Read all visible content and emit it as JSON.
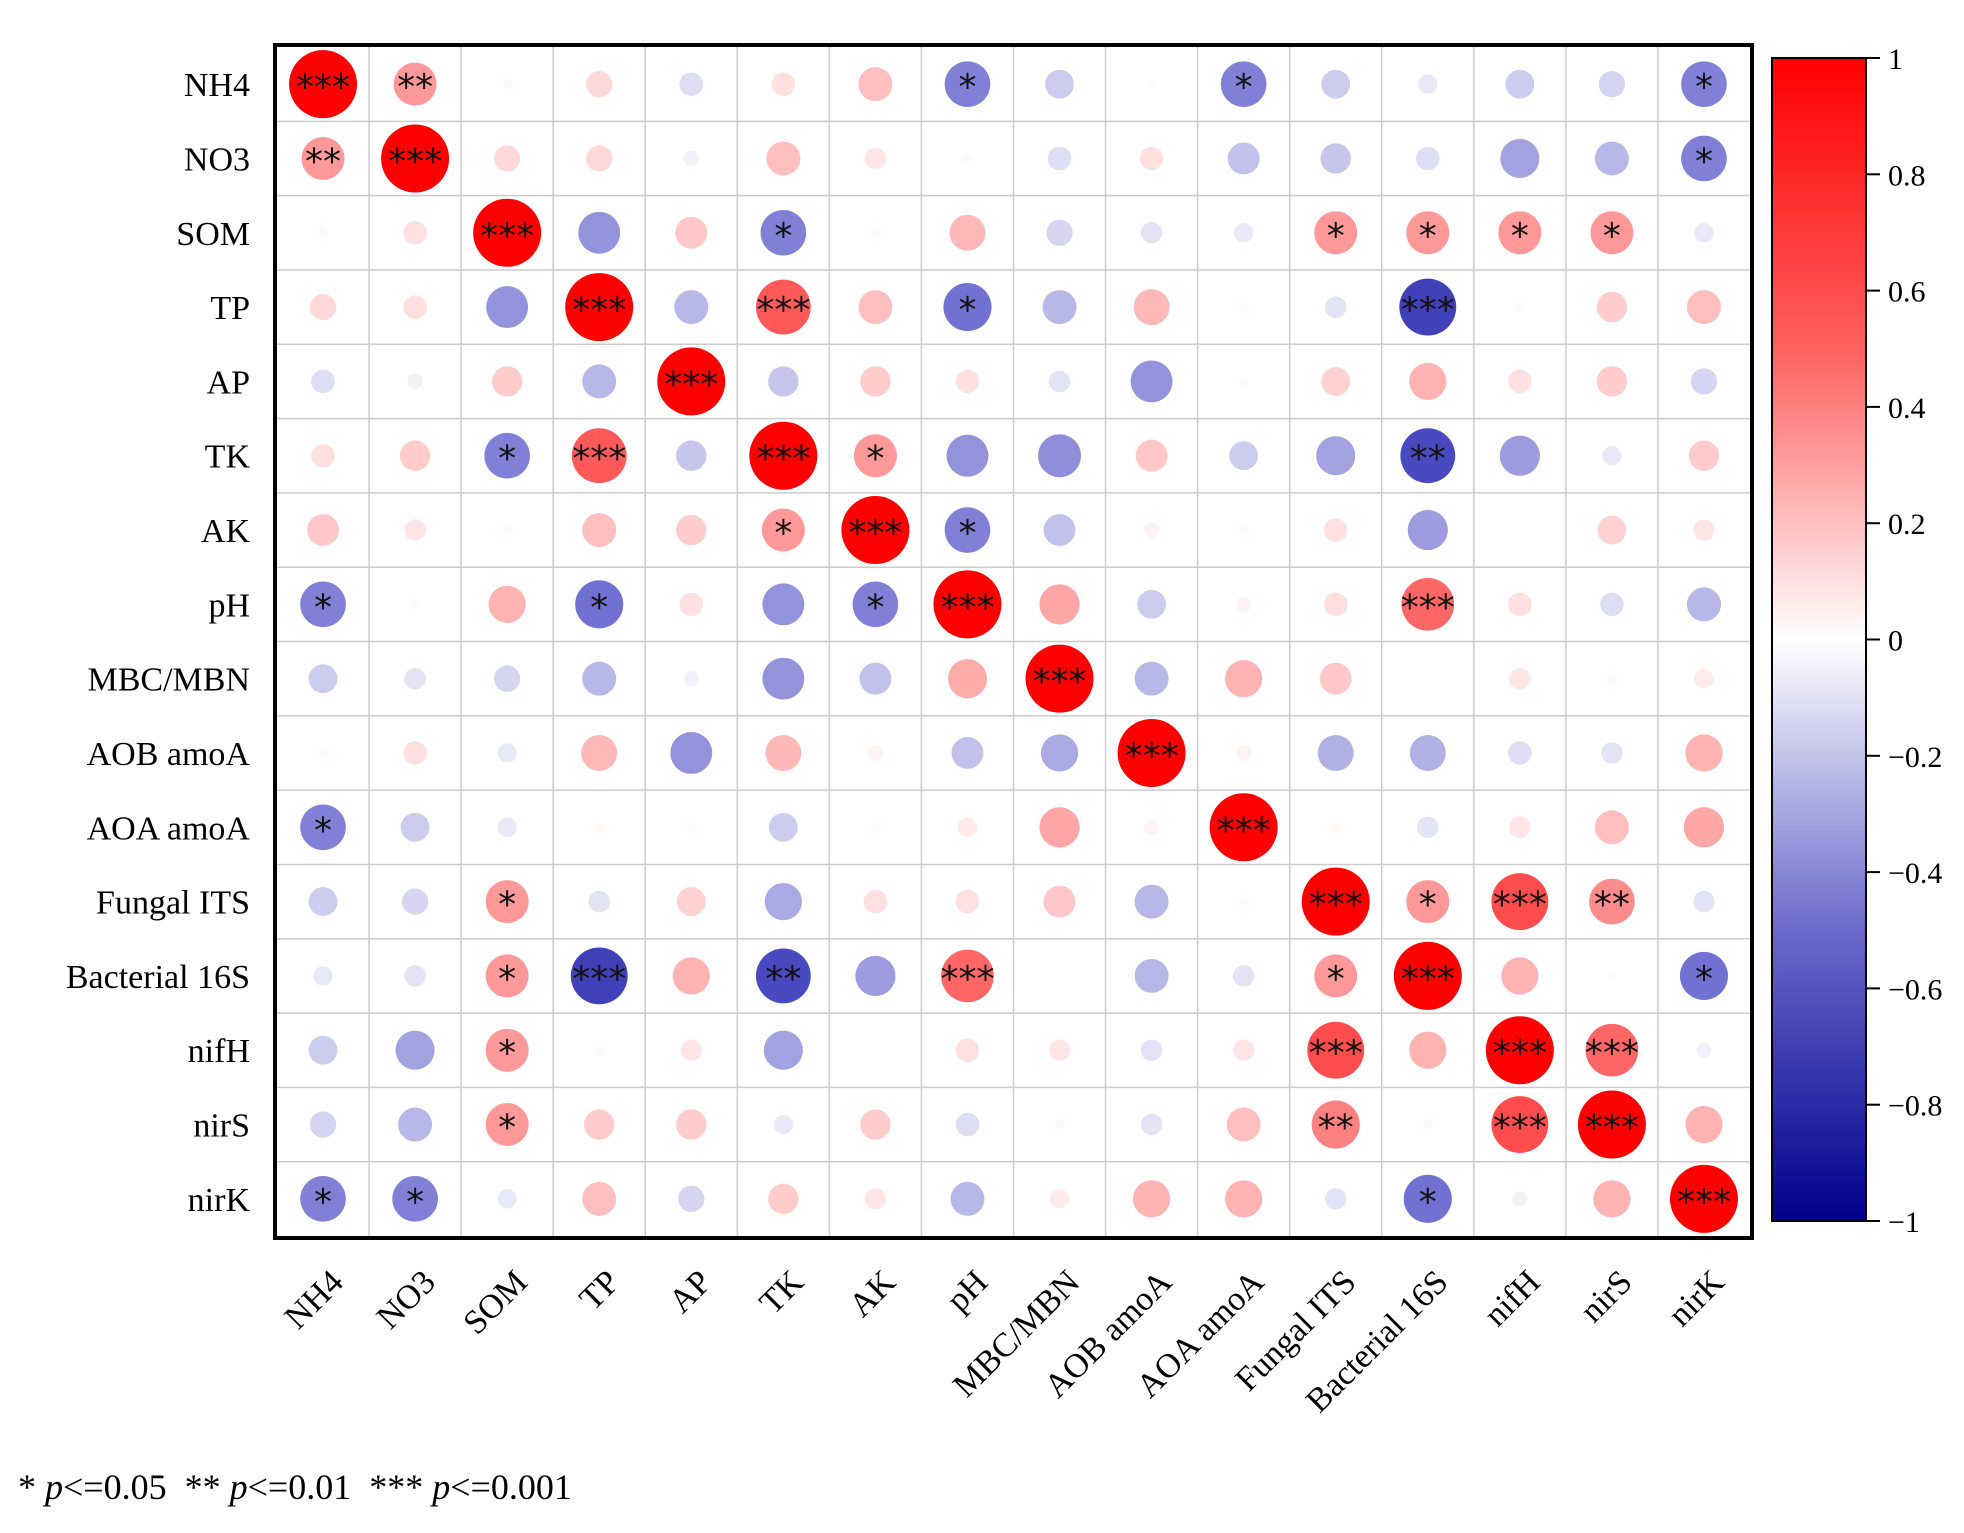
{
  "chart_data": {
    "type": "heatmap",
    "subtype": "correlation-circle-matrix",
    "title": "",
    "variables": [
      "NH4",
      "NO3",
      "SOM",
      "TP",
      "AP",
      "TK",
      "AK",
      "pH",
      "MBC/MBN",
      "AOB amoA",
      "AOA amoA",
      "Fungal ITS",
      "Bacterial 16S",
      "nifH",
      "nirS",
      "nirK"
    ],
    "matrix": [
      [
        1.0,
        0.4,
        0.02,
        0.15,
        -0.12,
        0.12,
        0.25,
        -0.45,
        -0.18,
        0.02,
        -0.45,
        -0.18,
        -0.08,
        -0.18,
        -0.15,
        -0.45
      ],
      [
        0.4,
        1.0,
        0.15,
        0.15,
        -0.05,
        0.25,
        0.1,
        0.02,
        -0.12,
        0.12,
        -0.22,
        -0.2,
        -0.12,
        -0.33,
        -0.25,
        -0.45
      ],
      [
        0.02,
        0.12,
        1.0,
        -0.38,
        0.22,
        -0.45,
        0.02,
        0.28,
        -0.15,
        -0.1,
        -0.08,
        0.4,
        0.4,
        0.4,
        0.4,
        -0.08
      ],
      [
        0.15,
        0.12,
        -0.38,
        1.0,
        -0.25,
        0.65,
        0.25,
        -0.5,
        -0.25,
        0.28,
        0.02,
        -0.1,
        -0.7,
        0.02,
        0.2,
        0.25
      ],
      [
        -0.12,
        -0.05,
        0.2,
        -0.25,
        1.0,
        -0.2,
        0.2,
        0.12,
        -0.1,
        -0.38,
        0.02,
        0.18,
        0.3,
        0.12,
        0.2,
        -0.15
      ],
      [
        0.12,
        0.2,
        -0.45,
        0.65,
        -0.2,
        1.0,
        0.4,
        -0.38,
        -0.4,
        0.22,
        -0.18,
        -0.33,
        -0.65,
        -0.35,
        -0.08,
        0.2
      ],
      [
        0.22,
        0.1,
        0.02,
        0.25,
        0.2,
        0.4,
        1.0,
        -0.45,
        -0.22,
        0.05,
        0.02,
        0.12,
        -0.35,
        0.0,
        0.18,
        0.1
      ],
      [
        -0.45,
        0.02,
        0.3,
        -0.5,
        0.12,
        -0.38,
        -0.45,
        1.0,
        0.35,
        -0.18,
        0.05,
        0.12,
        0.6,
        0.12,
        -0.12,
        -0.25
      ],
      [
        -0.18,
        -0.1,
        -0.15,
        -0.25,
        -0.05,
        -0.38,
        -0.22,
        0.33,
        1.0,
        -0.25,
        0.3,
        0.22,
        0.0,
        0.1,
        0.02,
        0.08
      ],
      [
        0.02,
        0.12,
        -0.08,
        0.28,
        -0.38,
        0.28,
        0.05,
        -0.22,
        -0.3,
        1.0,
        0.05,
        -0.28,
        -0.28,
        -0.12,
        -0.1,
        0.3
      ],
      [
        -0.45,
        -0.18,
        -0.08,
        0.02,
        0.02,
        -0.18,
        0.02,
        0.08,
        0.35,
        0.05,
        1.0,
        0.02,
        -0.1,
        0.1,
        0.25,
        0.35
      ],
      [
        -0.18,
        -0.15,
        0.4,
        -0.1,
        0.18,
        -0.3,
        0.12,
        0.12,
        0.22,
        -0.25,
        0.02,
        1.0,
        0.4,
        0.7,
        0.45,
        -0.1
      ],
      [
        -0.08,
        -0.1,
        0.4,
        -0.7,
        0.3,
        -0.65,
        -0.35,
        0.6,
        0.0,
        -0.25,
        -0.1,
        0.4,
        1.0,
        0.3,
        0.02,
        -0.5
      ],
      [
        -0.18,
        -0.33,
        0.4,
        0.02,
        0.1,
        -0.33,
        0.0,
        0.12,
        0.1,
        -0.1,
        0.1,
        0.7,
        0.3,
        1.0,
        0.6,
        -0.05
      ],
      [
        -0.15,
        -0.25,
        0.4,
        0.2,
        0.2,
        -0.08,
        0.2,
        -0.12,
        0.02,
        -0.1,
        0.25,
        0.5,
        0.02,
        0.7,
        1.0,
        0.3
      ],
      [
        -0.45,
        -0.45,
        -0.08,
        0.25,
        -0.15,
        0.2,
        0.1,
        -0.25,
        0.08,
        0.3,
        0.3,
        -0.1,
        -0.5,
        -0.05,
        0.3,
        1.0
      ]
    ],
    "significance": [
      [
        "***",
        "**",
        "",
        "",
        "",
        "",
        "",
        "*",
        "",
        "",
        "*",
        "",
        "",
        "",
        "",
        "*"
      ],
      [
        "**",
        "***",
        "",
        "",
        "",
        "",
        "",
        "",
        "",
        "",
        "",
        "",
        "",
        "",
        "",
        "*"
      ],
      [
        "",
        "",
        "***",
        "",
        "",
        "*",
        "",
        "",
        "",
        "",
        "",
        "*",
        "*",
        "*",
        "*",
        ""
      ],
      [
        "",
        "",
        "",
        "***",
        "",
        "***",
        "",
        "*",
        "",
        "",
        "",
        "",
        "***",
        "",
        "",
        ""
      ],
      [
        "",
        "",
        "",
        "",
        "***",
        "",
        "",
        "",
        "",
        "",
        "",
        "",
        "",
        "",
        "",
        ""
      ],
      [
        "",
        "",
        "*",
        "***",
        "",
        "***",
        "*",
        "",
        "",
        "",
        "",
        "",
        "**",
        "",
        "",
        ""
      ],
      [
        "",
        "",
        "",
        "",
        "",
        "*",
        "***",
        "*",
        "",
        "",
        "",
        "",
        "",
        "",
        "",
        ""
      ],
      [
        "*",
        "",
        "",
        "*",
        "",
        "",
        "*",
        "***",
        "",
        "",
        "",
        "",
        "***",
        "",
        "",
        ""
      ],
      [
        "",
        "",
        "",
        "",
        "",
        "",
        "",
        "",
        "***",
        "",
        "",
        "",
        "",
        "",
        "",
        ""
      ],
      [
        "",
        "",
        "",
        "",
        "",
        "",
        "",
        "",
        "",
        "***",
        "",
        "",
        "",
        "",
        "",
        ""
      ],
      [
        "*",
        "",
        "",
        "",
        "",
        "",
        "",
        "",
        "",
        "",
        "***",
        "",
        "",
        "",
        "",
        ""
      ],
      [
        "",
        "",
        "*",
        "",
        "",
        "",
        "",
        "",
        "",
        "",
        "",
        "***",
        "*",
        "***",
        "**",
        ""
      ],
      [
        "",
        "",
        "*",
        "***",
        "",
        "**",
        "",
        "***",
        "",
        "",
        "",
        "*",
        "***",
        "",
        "",
        "*"
      ],
      [
        "",
        "",
        "*",
        "",
        "",
        "",
        "",
        "",
        "",
        "",
        "",
        "***",
        "",
        "***",
        "***",
        ""
      ],
      [
        "",
        "",
        "*",
        "",
        "",
        "",
        "",
        "",
        "",
        "",
        "",
        "**",
        "",
        "***",
        "***",
        ""
      ],
      [
        "*",
        "*",
        "",
        "",
        "",
        "",
        "",
        "",
        "",
        "",
        "",
        "",
        "*",
        "",
        "",
        "***"
      ]
    ],
    "colorbar": {
      "range": [
        -1,
        1
      ],
      "ticks": [
        1,
        0.8,
        0.6,
        0.4,
        0.2,
        0,
        -0.2,
        -0.4,
        -0.6,
        -0.8,
        -1
      ],
      "tick_labels": [
        "1",
        "0.8",
        "0.6",
        "0.4",
        "0.2",
        "0",
        "−0.2",
        "−0.4",
        "−0.6",
        "−0.8",
        "−1"
      ],
      "colors": {
        "negative": "#00008B",
        "mid_negative": "#3B3BD6",
        "zero": "#FFFFFF",
        "mid_positive": "#FF3B3B",
        "positive": "#FF0000"
      }
    },
    "footnote": {
      "parts": [
        {
          "sym": "* ",
          "p": "p",
          "rest": "<=0.05"
        },
        {
          "sym": "  ** ",
          "p": "p",
          "rest": "<=0.01"
        },
        {
          "sym": "  *** ",
          "p": "p",
          "rest": "<=0.001"
        }
      ]
    }
  }
}
